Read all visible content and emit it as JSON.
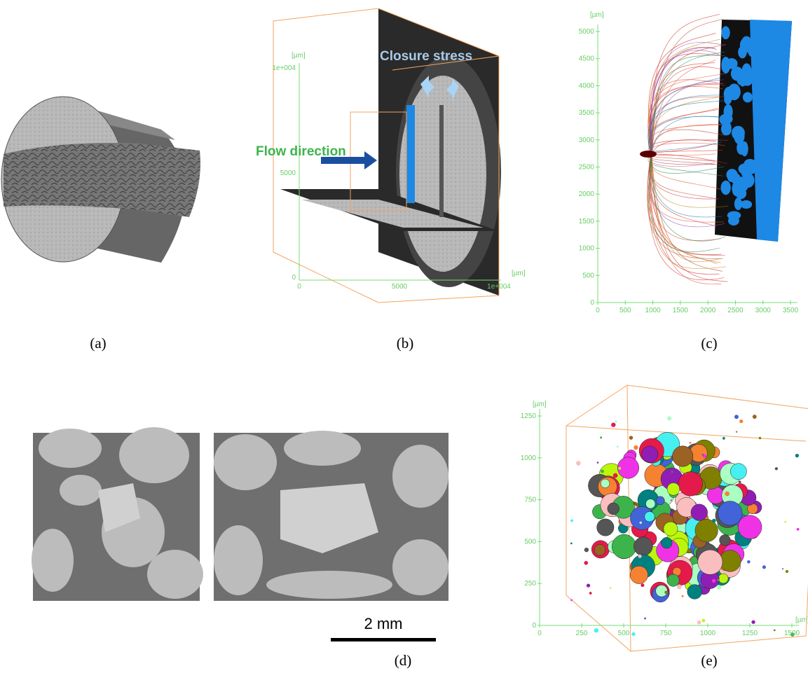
{
  "panel_a": {
    "label": "(a)"
  },
  "panel_b": {
    "label": "(b)",
    "closure_label": "Closure stress",
    "flow_label": "Flow direction",
    "y_unit": "[µm]",
    "x_unit": "[µm]",
    "yticks": [
      "1e+004",
      "5000",
      "0"
    ],
    "xticks": [
      "0",
      "5000",
      "1e+004"
    ]
  },
  "panel_c": {
    "label": "(c)",
    "y_unit": "[µm]",
    "ylim": [
      0,
      5000
    ],
    "xlim": [
      0,
      3500
    ],
    "yticks": [
      0,
      500,
      1000,
      1500,
      2000,
      2500,
      3000,
      3500,
      4000,
      4500,
      5000
    ],
    "xticks": [
      0,
      500,
      1000,
      1500,
      2000,
      2500,
      3000,
      3500
    ]
  },
  "panel_d": {
    "label": "(d)",
    "scale_bar": "2 mm"
  },
  "panel_e": {
    "label": "(e)",
    "y_unit": "[µm]",
    "x_unit": "[µm]",
    "ylim": [
      0,
      1250
    ],
    "xlim": [
      0,
      1500
    ],
    "yticks": [
      0,
      250,
      500,
      750,
      1000,
      1250
    ],
    "xticks": [
      0,
      250,
      500,
      750,
      1000,
      1250,
      1500
    ]
  }
}
